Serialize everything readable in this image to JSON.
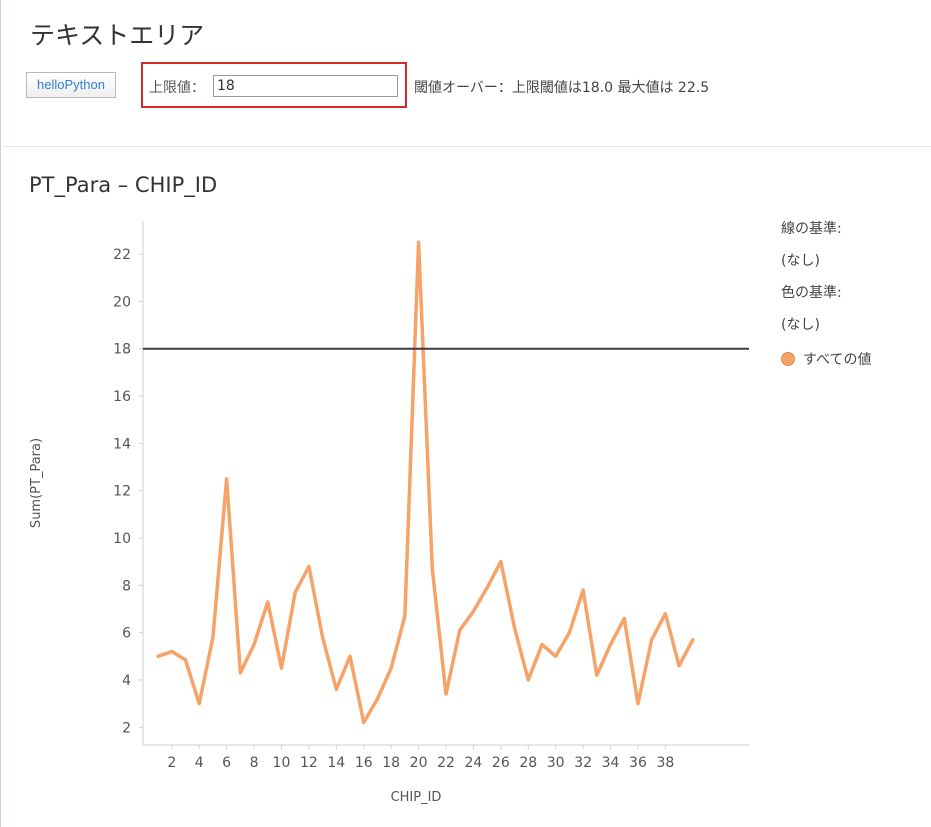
{
  "text_area": {
    "title": "テキストエリア",
    "button_label": "helloPython",
    "limit_label": "上限値：",
    "limit_value": "18",
    "message": "閾値オーバー：上限閾値は18.0 最大値は 22.5"
  },
  "chart_data": {
    "type": "line",
    "title": "PT_Para – CHIP_ID",
    "xlabel": "CHIP_ID",
    "ylabel": "Sum(PT_Para)",
    "x": [
      1,
      2,
      3,
      4,
      5,
      6,
      7,
      8,
      9,
      10,
      11,
      12,
      13,
      14,
      15,
      16,
      17,
      18,
      19,
      20,
      21,
      22,
      23,
      24,
      25,
      26,
      27,
      28,
      29,
      30,
      31,
      32,
      33,
      34,
      35,
      36,
      37,
      38,
      39,
      40
    ],
    "series": [
      {
        "values": [
          5.0,
          5.2,
          4.85,
          3.0,
          5.8,
          12.5,
          4.3,
          5.5,
          7.3,
          4.5,
          7.7,
          8.8,
          5.8,
          3.6,
          5.0,
          2.2,
          3.2,
          4.5,
          6.7,
          22.5,
          8.7,
          3.4,
          6.1,
          6.9,
          7.9,
          9.0,
          6.2,
          4.0,
          5.5,
          5.0,
          6.0,
          7.8,
          4.2,
          5.5,
          6.6,
          3.0,
          5.7,
          6.8,
          4.6,
          5.7
        ]
      }
    ],
    "xticks": [
      2,
      4,
      6,
      8,
      10,
      12,
      14,
      16,
      18,
      20,
      22,
      24,
      26,
      28,
      30,
      32,
      34,
      36,
      38
    ],
    "yticks": [
      2,
      4,
      6,
      8,
      10,
      12,
      14,
      16,
      18,
      20,
      22
    ],
    "xlim": [
      -0.1,
      44.1
    ],
    "ylim": [
      1.25,
      23.4
    ],
    "reference_line": 18,
    "line_color": "#f6a36a",
    "reference_color": "#3a3a44",
    "grid": false
  },
  "legend": {
    "line_by_label": "線の基準:",
    "line_by_value": "(なし)",
    "color_by_label": "色の基準:",
    "color_by_value": "(なし)",
    "entry": "すべての値",
    "swatch_color": "#f6a36a"
  }
}
